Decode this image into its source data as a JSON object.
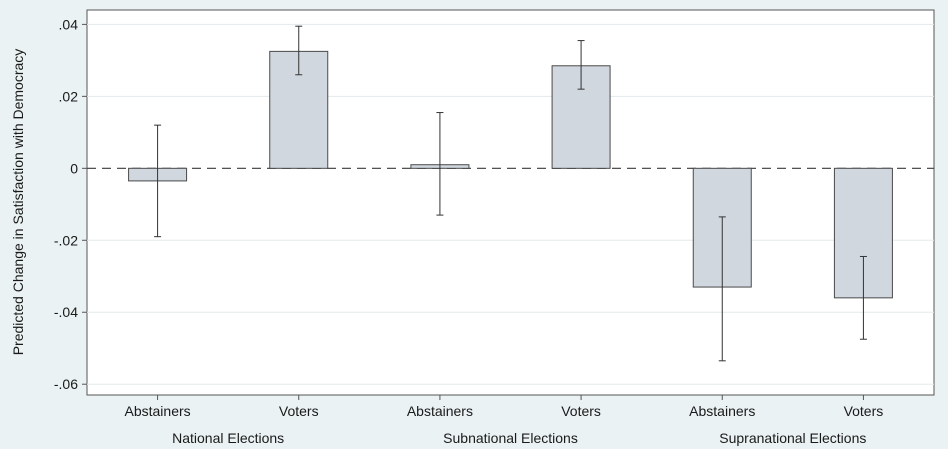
{
  "chart_data": {
    "type": "bar",
    "title": "",
    "xlabel": "",
    "ylabel": "Predicted Change in Satisfaction with Democracy",
    "ylim": [
      -0.063,
      0.044
    ],
    "yticks": [
      0.04,
      0.02,
      0,
      -0.02,
      -0.04,
      -0.06
    ],
    "ytick_labels": [
      ".04",
      ".02",
      "0",
      "-.02",
      "-.04",
      "-.06"
    ],
    "grid": true,
    "legend": "none",
    "reference_line": {
      "y": 0,
      "style": "dashed"
    },
    "groups": [
      "National Elections",
      "Subnational Elections",
      "Supranational Elections"
    ],
    "categories": [
      "Abstainers",
      "Voters",
      "Abstainers",
      "Voters",
      "Abstainers",
      "Voters"
    ],
    "values": [
      -0.0035,
      0.0325,
      0.001,
      0.0285,
      -0.033,
      -0.036
    ],
    "ci_low": [
      -0.019,
      0.026,
      -0.013,
      0.022,
      -0.0535,
      -0.0475
    ],
    "ci_high": [
      0.012,
      0.0395,
      0.0155,
      0.0355,
      -0.0135,
      -0.0245
    ],
    "colors": {
      "bar_fill": "#d0d7df",
      "bar_stroke": "#4a4a4a",
      "plot_bg": "#ffffff",
      "outer_bg": "#eaf2f3",
      "grid": "#e3eaec",
      "error_bar": "#333333"
    }
  }
}
